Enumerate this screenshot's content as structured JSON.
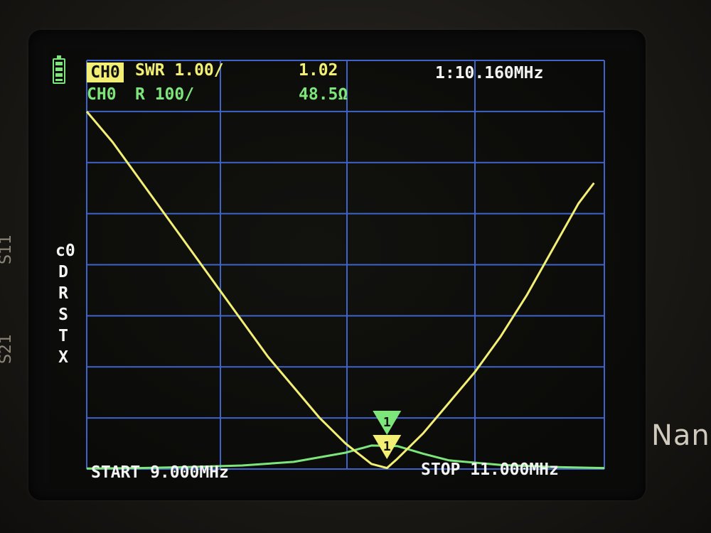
{
  "device": {
    "brand_text": "Nano",
    "side_text_upper": "S11",
    "side_text_lower": "S21"
  },
  "header": {
    "ch0_label": "CH0",
    "ch0_format": "SWR 1.00/",
    "ch0_value": "1.02",
    "ch1_label": "CH0",
    "ch1_format": "R 100/",
    "ch1_value": "48.5Ω",
    "marker_readout": "1:10.160MHz"
  },
  "menu_keys": [
    "c0",
    "D",
    "R",
    "S",
    "T",
    "X"
  ],
  "footer": {
    "start": "START 9.000MHz",
    "stop": "STOP 11.000MHz"
  },
  "markers": [
    {
      "id": "1",
      "channel": "swr"
    },
    {
      "id": "1",
      "channel": "resistance"
    }
  ],
  "colors": {
    "trace_swr": "#f2ef74",
    "trace_r": "#7ee57a",
    "grid": "#3f63c9",
    "text": "#f4f4f4"
  },
  "chart_data": {
    "type": "line",
    "x_range_mhz": [
      9.0,
      11.0
    ],
    "grid": true,
    "series": [
      {
        "channel": "SWR",
        "scale_per_div": 1.0,
        "ref_value": 1.0,
        "x": [
          9.0,
          9.1,
          9.2,
          9.3,
          9.4,
          9.5,
          9.6,
          9.7,
          9.8,
          9.9,
          10.0,
          10.1,
          10.16,
          10.2,
          10.3,
          10.4,
          10.5,
          10.6,
          10.7,
          10.8,
          10.9,
          10.96
        ],
        "values": [
          8.0,
          7.4,
          6.7,
          6.0,
          5.3,
          4.6,
          3.9,
          3.2,
          2.6,
          2.0,
          1.5,
          1.1,
          1.02,
          1.2,
          1.7,
          2.3,
          2.9,
          3.6,
          4.4,
          5.3,
          6.2,
          6.6
        ]
      },
      {
        "channel": "R",
        "scale_per_div": 100,
        "ref_value": 0,
        "x": [
          9.0,
          9.2,
          9.4,
          9.6,
          9.8,
          10.0,
          10.1,
          10.2,
          10.3,
          10.4,
          10.6,
          10.8,
          11.0
        ],
        "values": [
          1.0,
          2.0,
          4.0,
          7.0,
          14.0,
          32.0,
          46.0,
          45.0,
          30.0,
          17.0,
          8.0,
          4.0,
          2.0
        ]
      }
    ]
  }
}
